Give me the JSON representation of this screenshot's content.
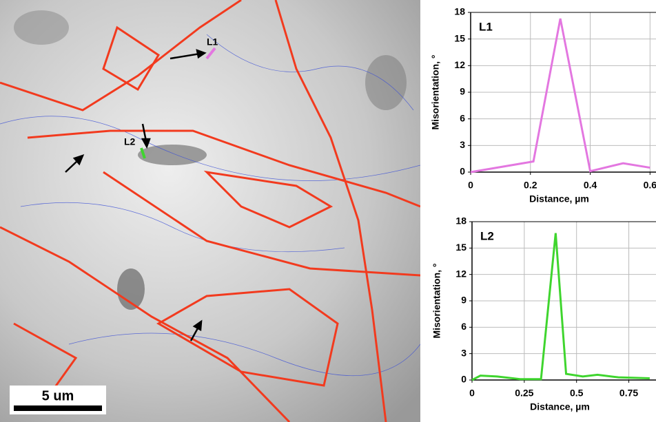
{
  "micrograph": {
    "labels": [
      "L1",
      "L2"
    ],
    "scale_bar": "5 um"
  },
  "chart_data": [
    {
      "type": "line",
      "title": "L1",
      "x_label": "Distance, µm",
      "y_label": "Misorientation, °",
      "xlim": [
        0,
        0.62
      ],
      "xticks": [
        0,
        0.2,
        0.4,
        0.6
      ],
      "ylim": [
        0,
        18
      ],
      "yticks": [
        0,
        3,
        6,
        9,
        12,
        15,
        18
      ],
      "grid": true,
      "series": [
        {
          "name": "L1",
          "color": "#e377e0",
          "x": [
            0,
            0.21,
            0.3,
            0.4,
            0.51,
            0.6
          ],
          "values": [
            0,
            1.2,
            17.3,
            0.1,
            1.0,
            0.5
          ]
        }
      ]
    },
    {
      "type": "line",
      "title": "L2",
      "x_label": "Distance, µm",
      "y_label": "Misorientation, °",
      "xlim": [
        0,
        0.88
      ],
      "xticks": [
        0,
        0.25,
        0.5,
        0.75
      ],
      "ylim": [
        0,
        18
      ],
      "yticks": [
        0,
        3,
        6,
        9,
        12,
        15,
        18
      ],
      "grid": true,
      "series": [
        {
          "name": "L2",
          "color": "#3fd52e",
          "x": [
            0,
            0.04,
            0.12,
            0.23,
            0.33,
            0.4,
            0.45,
            0.53,
            0.6,
            0.7,
            0.85
          ],
          "values": [
            0,
            0.5,
            0.4,
            0.1,
            0.1,
            16.7,
            0.7,
            0.4,
            0.6,
            0.3,
            0.2
          ]
        }
      ]
    }
  ]
}
